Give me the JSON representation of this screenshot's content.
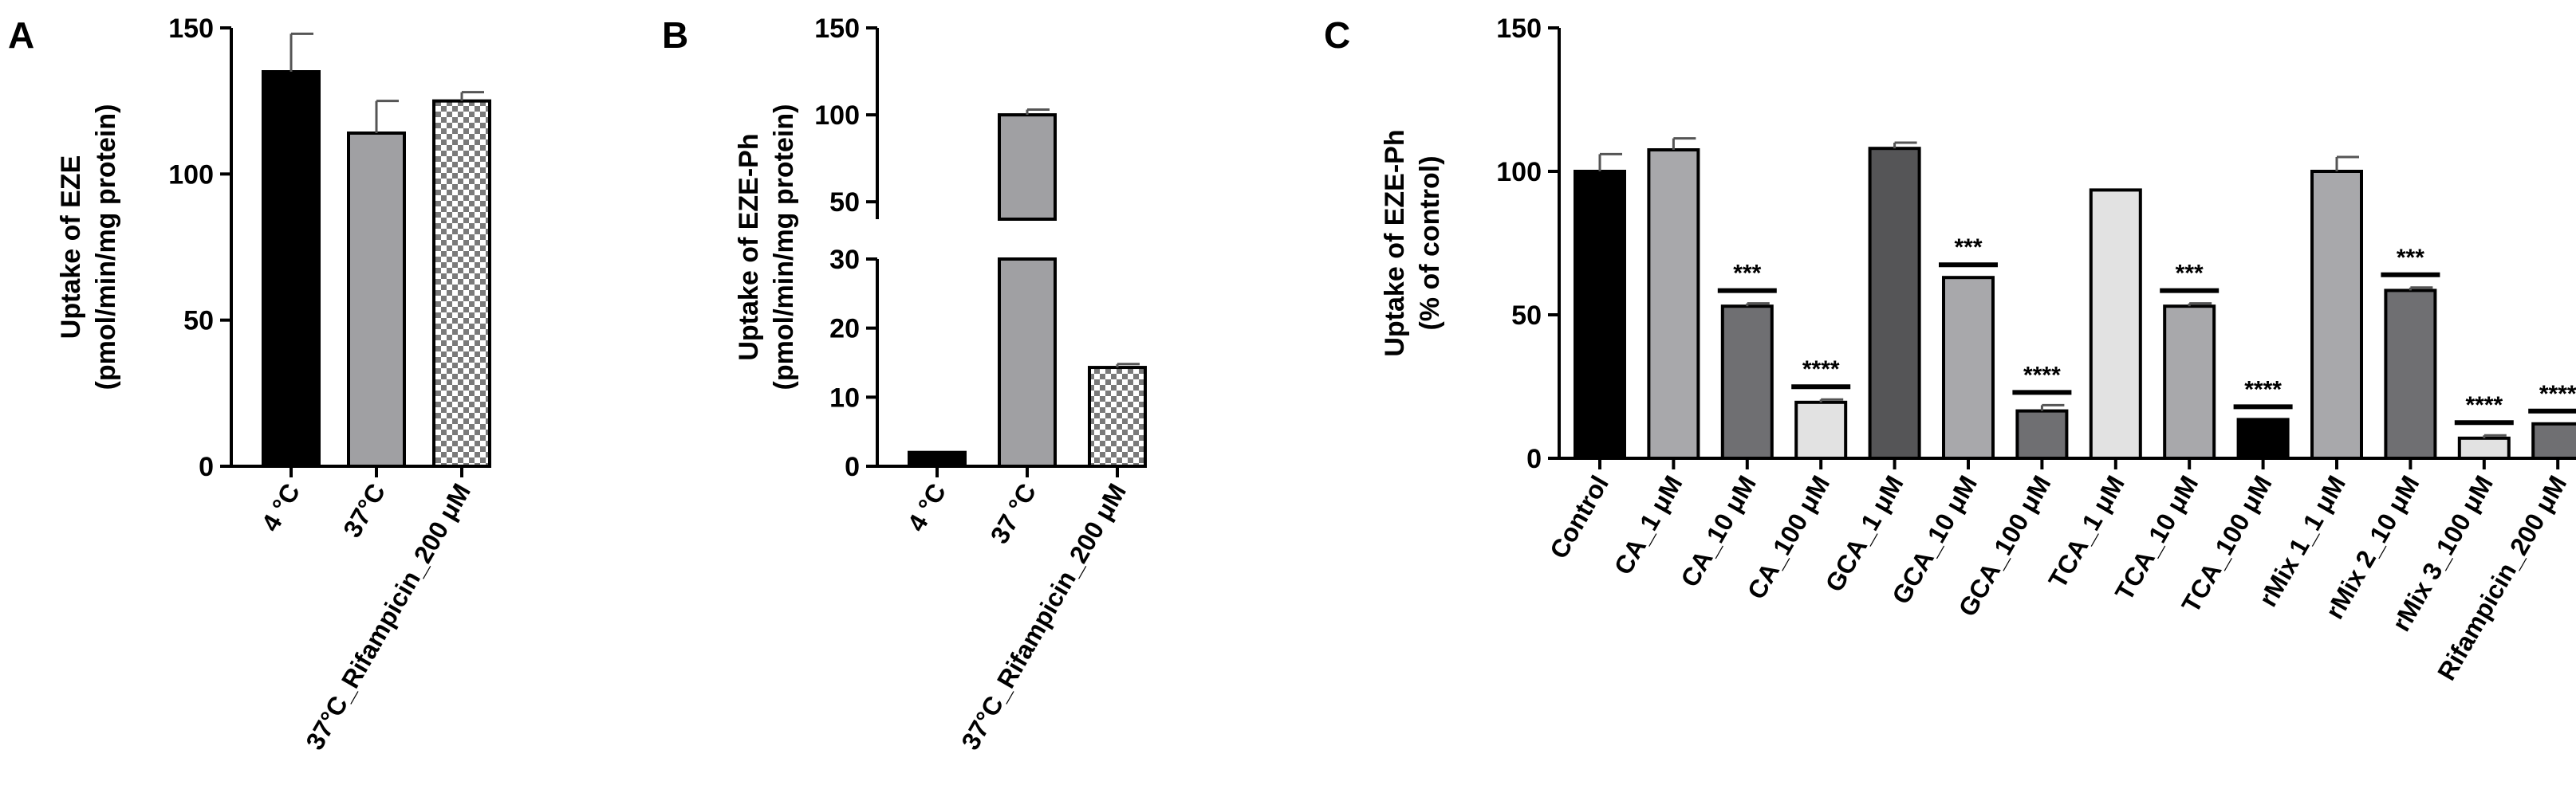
{
  "chart_data": [
    {
      "panel_label": "A",
      "type": "bar",
      "ylabel": [
        "Uptake of EZE",
        "(pmol/min/mg protein)"
      ],
      "ylim": [
        0,
        150
      ],
      "yticks": [
        0,
        50,
        100,
        150
      ],
      "categories": [
        "4 °C",
        "37°C",
        "37°C_Rifampicin_200 μM"
      ],
      "values": [
        135,
        114,
        125
      ],
      "errors": [
        13,
        11,
        3
      ],
      "fills": [
        "black",
        "gray",
        "checker"
      ]
    },
    {
      "panel_label": "B",
      "type": "bar",
      "ylabel": [
        "Uptake of EZE-Ph",
        "(pmol/min/mg protein)"
      ],
      "yaxis_break": {
        "lower": [
          0,
          30
        ],
        "upper": [
          40,
          150
        ]
      },
      "yticks_lower": [
        0,
        10,
        20,
        30
      ],
      "yticks_upper": [
        50,
        100,
        150
      ],
      "categories": [
        "4 °C",
        "37 °C",
        "37°C_Rifampicin_200 μM"
      ],
      "values": [
        2,
        100,
        14.3
      ],
      "errors": [
        0,
        3,
        0.5
      ],
      "fills": [
        "black",
        "gray",
        "checker"
      ]
    },
    {
      "panel_label": "C",
      "type": "bar",
      "ylabel": [
        "Uptake of EZE-Ph",
        "(% of control)"
      ],
      "ylim": [
        0,
        150
      ],
      "yticks": [
        0,
        50,
        100,
        150
      ],
      "categories": [
        "Control",
        "CA_1 μM",
        "CA_10 μM",
        "CA_100 μM",
        "GCA_1 μM",
        "GCA_10 μM",
        "GCA_100 μM",
        "TCA_1 μM",
        "TCA_10 μM",
        "TCA_100 μM",
        "rMix 1_1 μM",
        "rMix 2_10 μM",
        "rMix 3_100 μM",
        "Rifampicin_200 μM"
      ],
      "values": [
        100,
        107.5,
        53,
        19.5,
        108,
        63,
        16.5,
        93.5,
        53,
        13.5,
        100,
        58.5,
        7,
        12
      ],
      "errors": [
        6,
        4,
        1,
        1,
        2,
        0,
        2,
        0,
        1,
        0,
        5,
        1,
        1,
        0
      ],
      "significance": [
        "",
        "",
        "***",
        "****",
        "",
        "***",
        "****",
        "",
        "***",
        "****",
        "",
        "***",
        "****",
        "****"
      ],
      "fills": [
        "black",
        "lightgray",
        "darkgray",
        "whitish",
        "charcoal",
        "lightgray",
        "darkgray",
        "whitish",
        "lightgray",
        "black",
        "lightgray",
        "darkgray",
        "whitish",
        "darkgray"
      ]
    }
  ],
  "colors": {
    "black": "#000000",
    "gray": "#a0a0a3",
    "lightgray": "#a8a8ab",
    "darkgray": "#6f6f72",
    "whitish": "#e2e2e2",
    "charcoal": "#555557",
    "checker_a": "#ffffff",
    "checker_b": "#7a7a7a",
    "axis": "#000000"
  }
}
